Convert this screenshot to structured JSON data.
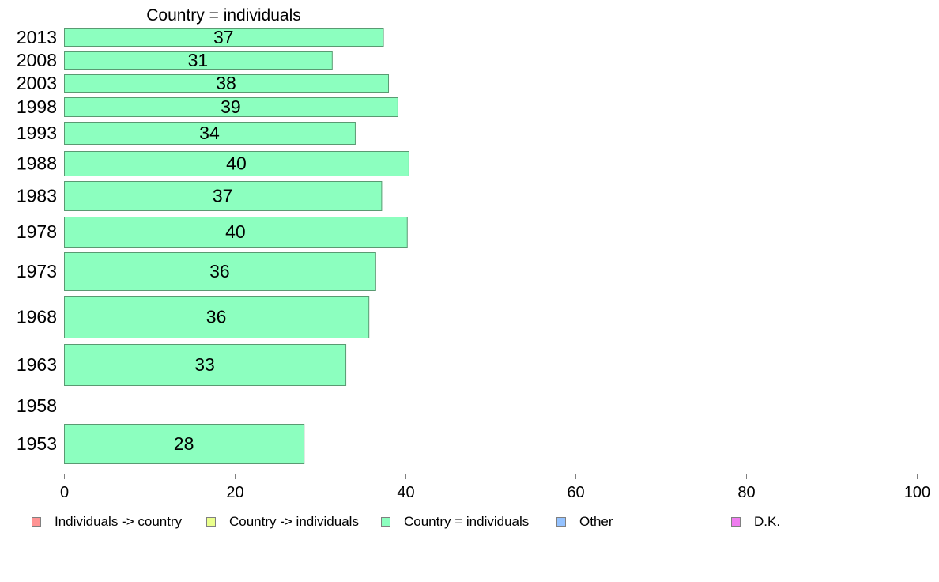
{
  "chart_data": {
    "type": "bar",
    "orientation": "horizontal",
    "title": "Country = individuals",
    "categories": [
      "2013",
      "2008",
      "2003",
      "1998",
      "1993",
      "1988",
      "1983",
      "1978",
      "1973",
      "1968",
      "1963",
      "1958",
      "1953"
    ],
    "values": [
      37.4,
      31.4,
      38.0,
      39.1,
      34.1,
      40.4,
      37.2,
      40.2,
      36.5,
      35.7,
      33.0,
      null,
      28.1
    ],
    "labels": [
      "37",
      "31",
      "38",
      "39",
      "34",
      "40",
      "37",
      "40",
      "36",
      "36",
      "33",
      "",
      "28"
    ],
    "xlim": [
      0,
      100
    ],
    "xticks": [
      "0",
      "20",
      "40",
      "60",
      "80",
      "100"
    ],
    "xlabel": "",
    "ylabel": "",
    "grid": false,
    "bar_color": "#8CFFBF",
    "bar_edge_color": "#5a9a72",
    "legend_position": "bottom",
    "legend": [
      {
        "label": "Individuals -> country",
        "color": "#FF9494"
      },
      {
        "label": "Country -> individuals",
        "color": "#EAFF8C"
      },
      {
        "label": "Country = individuals",
        "color": "#8CFFBF"
      },
      {
        "label": "Other",
        "color": "#94C2FF"
      },
      {
        "label": "D.K.",
        "color": "#F07DF0"
      }
    ]
  }
}
